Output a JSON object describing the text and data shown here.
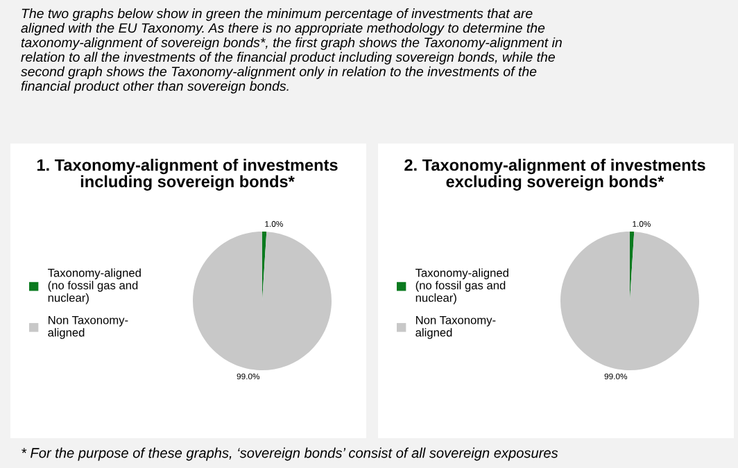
{
  "chart_data": [
    {
      "type": "pie",
      "title": "1. Taxonomy-alignment of investments\nincluding sovereign bonds*",
      "categories": [
        "Taxonomy-aligned\n(no fossil gas and\nnuclear)",
        "Non Taxonomy-\naligned"
      ],
      "values": [
        1.0,
        99.0
      ],
      "colors": [
        "#0b7a1f",
        "#c8c8c8"
      ],
      "value_labels": [
        "1.0%",
        "99.0%"
      ],
      "legend": "left",
      "annotations": [
        "The two graphs below show in green the minimum percentage of investments that are\naligned with the EU Taxonomy. As there is no appropriate methodology to determine the\ntaxonomy-alignment of sovereign bonds*, the first graph shows the Taxonomy-alignment in\nrelation to all the investments of the financial product including sovereign bonds, while the\nsecond graph shows the Taxonomy-alignment only in relation to the investments of the\nfinancial product other than sovereign bonds."
      ]
    },
    {
      "type": "pie",
      "title": "2. Taxonomy-alignment of investments\nexcluding sovereign bonds*",
      "categories": [
        "Taxonomy-aligned\n(no fossil gas and\nnuclear)",
        "Non Taxonomy-\naligned"
      ],
      "values": [
        1.0,
        99.0
      ],
      "colors": [
        "#0b7a1f",
        "#c8c8c8"
      ],
      "value_labels": [
        "1.0%",
        "99.0%"
      ],
      "legend": "left",
      "annotations": [
        "* For the purpose of these graphs, ‘sovereign bonds’ consist of all sovereign exposures"
      ]
    }
  ]
}
